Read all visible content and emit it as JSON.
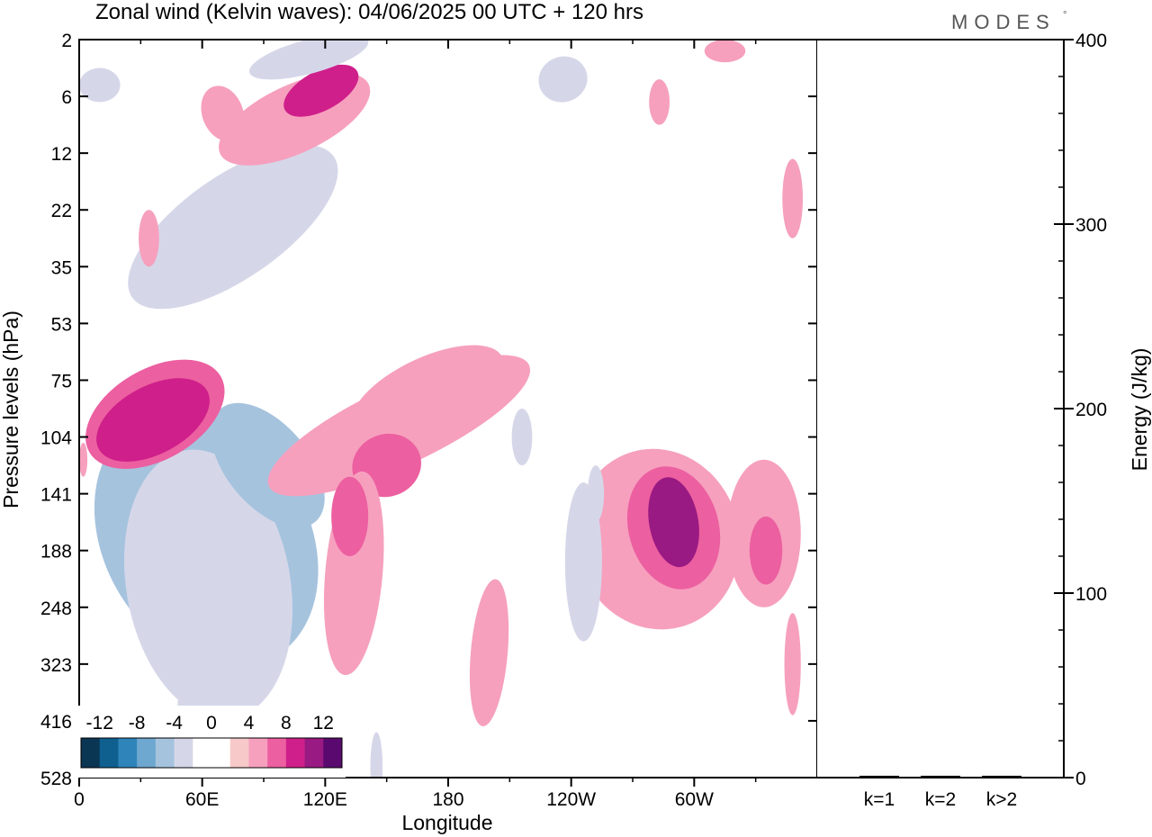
{
  "title": "Zonal wind (Kelvin waves):  04/06/2025  00 UTC  + 120 hrs",
  "logo": {
    "text": "MODES",
    "mark": "°"
  },
  "chart_data": [
    {
      "type": "heatmap",
      "title": "Zonal wind (Kelvin waves):  04/06/2025  00 UTC  + 120 hrs",
      "xlabel": "Longitude",
      "ylabel": "Pressure levels (hPa)",
      "x_ticks": [
        "0",
        "60E",
        "120E",
        "180",
        "120W",
        "60W"
      ],
      "x_tick_degrees": [
        0,
        60,
        120,
        180,
        240,
        300
      ],
      "xlim": [
        0,
        360
      ],
      "y_levels": [
        "2",
        "6",
        "12",
        "22",
        "35",
        "53",
        "75",
        "104",
        "141",
        "188",
        "248",
        "323",
        "416",
        "528"
      ],
      "y_scale": "categorical pressure levels (top to bottom)",
      "colorbar": {
        "labels": [
          "-12",
          "-8",
          "-4",
          "0",
          "4",
          "8",
          "12"
        ],
        "bins": [
          {
            "color": "#0a3553"
          },
          {
            "color": "#0f5f8f"
          },
          {
            "color": "#2f84b9"
          },
          {
            "color": "#6ea7cf"
          },
          {
            "color": "#a6c3de"
          },
          {
            "color": "#d5d7e9"
          },
          {
            "color": "#ffffff"
          },
          {
            "color": "#ffffff"
          },
          {
            "color": "#f8c9c9"
          },
          {
            "color": "#f6a0be"
          },
          {
            "color": "#ec5fa0"
          },
          {
            "color": "#cf1f8a"
          },
          {
            "color": "#991a82"
          },
          {
            "color": "#5a0a6e"
          }
        ]
      },
      "blobs": [
        {
          "lon": 48,
          "lev": 8.7,
          "rlon": 26,
          "rlev": 1.1,
          "rot": -20,
          "value": -14
        },
        {
          "lon": 56,
          "lev": 8.6,
          "rlon": 36,
          "rlev": 1.7,
          "rot": -25,
          "value": -10
        },
        {
          "lon": 62,
          "lev": 8.8,
          "rlon": 50,
          "rlev": 2.4,
          "rot": -30,
          "value": -6
        },
        {
          "lon": 63,
          "lev": 9.6,
          "rlon": 40,
          "rlev": 2.4,
          "rot": -10,
          "value": -4
        },
        {
          "lon": 92,
          "lev": 7.5,
          "rlon": 20,
          "rlev": 1.3,
          "rot": -40,
          "value": -6
        },
        {
          "lon": 37,
          "lev": 6.6,
          "rlon": 37,
          "rlev": 0.8,
          "rot": -30,
          "value": 6
        },
        {
          "lon": 36,
          "lev": 6.7,
          "rlon": 30,
          "rlev": 0.6,
          "rot": -28,
          "value": 9
        },
        {
          "lon": 75,
          "lev": 3.3,
          "rlon": 60,
          "rlev": 0.9,
          "rot": -35,
          "value": -3
        },
        {
          "lon": 70,
          "lev": 11.2,
          "rlon": 20,
          "rlev": 1.8,
          "rot": 12,
          "value": -3
        },
        {
          "lon": 105,
          "lev": 1.4,
          "rlon": 40,
          "rlev": 0.6,
          "rot": -25,
          "value": 5
        },
        {
          "lon": 118,
          "lev": 0.9,
          "rlon": 20,
          "rlev": 0.35,
          "rot": -28,
          "value": 9
        },
        {
          "lon": 112,
          "lev": 0.3,
          "rlon": 30,
          "rlev": 0.3,
          "rot": -15,
          "value": -4
        },
        {
          "lon": 10,
          "lev": 0.8,
          "rlon": 10,
          "rlev": 0.3,
          "rot": 0,
          "value": -3
        },
        {
          "lon": 156,
          "lev": 6.8,
          "rlon": 70,
          "rlev": 0.7,
          "rot": -25,
          "value": 4
        },
        {
          "lon": 170,
          "lev": 6.2,
          "rlon": 40,
          "rlev": 0.6,
          "rot": -25,
          "value": 4
        },
        {
          "lon": 150,
          "lev": 7.5,
          "rlon": 17,
          "rlev": 0.55,
          "rot": -20,
          "value": 6
        },
        {
          "lon": 134,
          "lev": 9.4,
          "rlon": 14,
          "rlev": 1.8,
          "rot": 5,
          "value": 4
        },
        {
          "lon": 132,
          "lev": 8.4,
          "rlon": 9,
          "rlev": 0.7,
          "rot": 0,
          "value": 6
        },
        {
          "lon": 282,
          "lev": 8.8,
          "rlon": 40,
          "rlev": 1.6,
          "rot": -15,
          "value": 4
        },
        {
          "lon": 290,
          "lev": 8.6,
          "rlon": 22,
          "rlev": 1.1,
          "rot": -15,
          "value": 7
        },
        {
          "lon": 290,
          "lev": 8.5,
          "rlon": 12,
          "rlev": 0.8,
          "rot": -10,
          "value": 10
        },
        {
          "lon": 334,
          "lev": 8.7,
          "rlon": 18,
          "rlev": 1.3,
          "rot": 0,
          "value": 4
        },
        {
          "lon": 335,
          "lev": 9.0,
          "rlon": 8,
          "rlev": 0.6,
          "rot": 0,
          "value": 6
        },
        {
          "lon": 246,
          "lev": 9.2,
          "rlon": 9,
          "rlev": 1.4,
          "rot": 0,
          "value": -4
        },
        {
          "lon": 252,
          "lev": 8.0,
          "rlon": 4,
          "rlev": 0.5,
          "rot": 0,
          "value": -3
        },
        {
          "lon": 200,
          "lev": 10.8,
          "rlon": 9,
          "rlev": 1.3,
          "rot": 5,
          "value": 4
        },
        {
          "lon": 348,
          "lev": 11.0,
          "rlon": 4,
          "rlev": 0.9,
          "rot": 0,
          "value": 4
        },
        {
          "lon": 70,
          "lev": 1.3,
          "rlon": 10,
          "rlev": 0.5,
          "rot": -20,
          "value": 4
        },
        {
          "lon": 34,
          "lev": 3.5,
          "rlon": 5,
          "rlev": 0.5,
          "rot": 0,
          "value": 4
        },
        {
          "lon": 236,
          "lev": 0.7,
          "rlon": 12,
          "rlev": 0.4,
          "rot": -20,
          "value": -3
        },
        {
          "lon": 315,
          "lev": 0.2,
          "rlon": 10,
          "rlev": 0.2,
          "rot": 0,
          "value": 4
        },
        {
          "lon": 348,
          "lev": 2.8,
          "rlon": 5,
          "rlev": 0.7,
          "rot": 0,
          "value": 4
        },
        {
          "lon": 2,
          "lev": 7.4,
          "rlon": 2,
          "rlev": 0.3,
          "rot": 0,
          "value": 4
        },
        {
          "lon": 283,
          "lev": 1.1,
          "rlon": 5,
          "rlev": 0.4,
          "rot": 0,
          "value": 4
        },
        {
          "lon": 216,
          "lev": 7.0,
          "rlon": 5,
          "rlev": 0.5,
          "rot": 0,
          "value": -3
        },
        {
          "lon": 145,
          "lev": 12.8,
          "rlon": 3,
          "rlev": 0.6,
          "rot": 0,
          "value": -3
        }
      ]
    },
    {
      "type": "bar",
      "xlabel": "",
      "ylabel": "Energy (J/kg)",
      "categories": [
        "k=1",
        "k=2",
        "k>2"
      ],
      "values": [
        1,
        1,
        1
      ],
      "ylim": [
        0,
        400
      ],
      "y_ticks": [
        "0",
        "100",
        "200",
        "300",
        "400"
      ]
    }
  ]
}
